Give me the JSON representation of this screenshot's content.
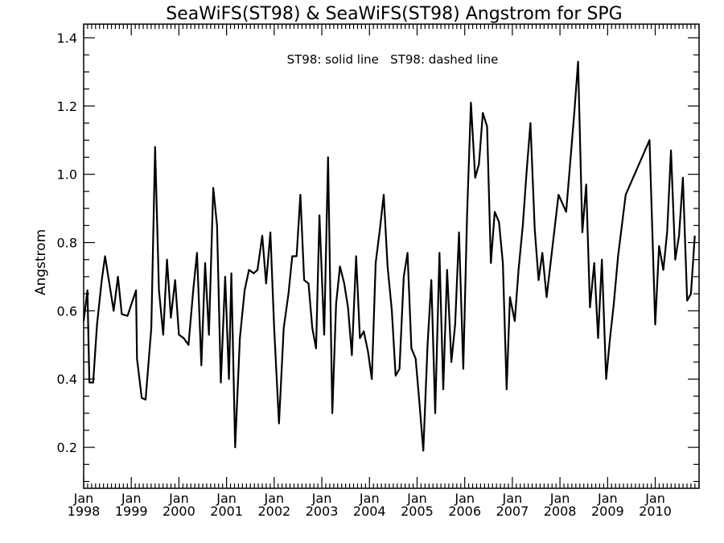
{
  "chart_data": {
    "type": "line",
    "title": "SeaWiFS(ST98) & SeaWiFS(ST98)  Angstrom for SPG",
    "annotation": "ST98: solid line   ST98: dashed line",
    "ylabel": "Angstrom",
    "xlabel": "",
    "xlim": [
      1998.0,
      2010.92
    ],
    "ylim": [
      0.08,
      1.44
    ],
    "yticks": [
      0.2,
      0.4,
      0.6,
      0.8,
      1.0,
      1.2,
      1.4
    ],
    "ytick_labels": [
      "0.2",
      "0.4",
      "0.6",
      "0.8",
      "1.0",
      "1.2",
      "1.4"
    ],
    "xticks": [
      {
        "x": 1998,
        "month": "Jan",
        "year": "1998"
      },
      {
        "x": 1999,
        "month": "Jan",
        "year": "1999"
      },
      {
        "x": 2000,
        "month": "Jan",
        "year": "2000"
      },
      {
        "x": 2001,
        "month": "Jan",
        "year": "2001"
      },
      {
        "x": 2002,
        "month": "Jan",
        "year": "2002"
      },
      {
        "x": 2003,
        "month": "Jan",
        "year": "2003"
      },
      {
        "x": 2004,
        "month": "Jan",
        "year": "2004"
      },
      {
        "x": 2005,
        "month": "Jan",
        "year": "2005"
      },
      {
        "x": 2006,
        "month": "Jan",
        "year": "2006"
      },
      {
        "x": 2007,
        "month": "Jan",
        "year": "2007"
      },
      {
        "x": 2008,
        "month": "Jan",
        "year": "2008"
      },
      {
        "x": 2009,
        "month": "Jan",
        "year": "2009"
      },
      {
        "x": 2010,
        "month": "Jan",
        "year": "2010"
      }
    ],
    "grid": false,
    "series": [
      {
        "line_style": "solid",
        "color": "#000000",
        "points": [
          [
            1998.0,
            0.57
          ],
          [
            1998.08,
            0.66
          ],
          [
            1998.12,
            0.39
          ],
          [
            1998.2,
            0.39
          ],
          [
            1998.28,
            0.56
          ],
          [
            1998.38,
            0.69
          ],
          [
            1998.45,
            0.76
          ],
          [
            1998.55,
            0.67
          ],
          [
            1998.63,
            0.6
          ],
          [
            1998.72,
            0.7
          ],
          [
            1998.8,
            0.59
          ],
          [
            1998.92,
            0.585
          ],
          [
            1999.1,
            0.66
          ],
          [
            1999.12,
            0.46
          ],
          [
            1999.22,
            0.345
          ],
          [
            1999.3,
            0.34
          ],
          [
            1999.42,
            0.55
          ],
          [
            1999.5,
            1.08
          ],
          [
            1999.58,
            0.66
          ],
          [
            1999.67,
            0.53
          ],
          [
            1999.75,
            0.75
          ],
          [
            1999.83,
            0.58
          ],
          [
            1999.92,
            0.69
          ],
          [
            2000.0,
            0.53
          ],
          [
            2000.1,
            0.52
          ],
          [
            2000.2,
            0.5
          ],
          [
            2000.3,
            0.66
          ],
          [
            2000.38,
            0.77
          ],
          [
            2000.47,
            0.44
          ],
          [
            2000.55,
            0.74
          ],
          [
            2000.63,
            0.53
          ],
          [
            2000.72,
            0.96
          ],
          [
            2000.8,
            0.85
          ],
          [
            2000.88,
            0.39
          ],
          [
            2000.97,
            0.7
          ],
          [
            2001.05,
            0.4
          ],
          [
            2001.1,
            0.71
          ],
          [
            2001.18,
            0.2
          ],
          [
            2001.28,
            0.52
          ],
          [
            2001.38,
            0.66
          ],
          [
            2001.47,
            0.72
          ],
          [
            2001.57,
            0.71
          ],
          [
            2001.65,
            0.72
          ],
          [
            2001.75,
            0.82
          ],
          [
            2001.83,
            0.68
          ],
          [
            2001.92,
            0.83
          ],
          [
            2002.0,
            0.55
          ],
          [
            2002.1,
            0.27
          ],
          [
            2002.2,
            0.55
          ],
          [
            2002.3,
            0.65
          ],
          [
            2002.38,
            0.76
          ],
          [
            2002.47,
            0.76
          ],
          [
            2002.55,
            0.94
          ],
          [
            2002.63,
            0.69
          ],
          [
            2002.72,
            0.68
          ],
          [
            2002.8,
            0.55
          ],
          [
            2002.88,
            0.49
          ],
          [
            2002.95,
            0.88
          ],
          [
            2003.05,
            0.53
          ],
          [
            2003.13,
            1.05
          ],
          [
            2003.22,
            0.3
          ],
          [
            2003.3,
            0.62
          ],
          [
            2003.38,
            0.73
          ],
          [
            2003.47,
            0.68
          ],
          [
            2003.55,
            0.61
          ],
          [
            2003.63,
            0.47
          ],
          [
            2003.72,
            0.76
          ],
          [
            2003.8,
            0.52
          ],
          [
            2003.88,
            0.54
          ],
          [
            2003.97,
            0.48
          ],
          [
            2004.05,
            0.4
          ],
          [
            2004.13,
            0.74
          ],
          [
            2004.22,
            0.84
          ],
          [
            2004.3,
            0.94
          ],
          [
            2004.38,
            0.73
          ],
          [
            2004.47,
            0.6
          ],
          [
            2004.55,
            0.41
          ],
          [
            2004.63,
            0.43
          ],
          [
            2004.72,
            0.7
          ],
          [
            2004.8,
            0.77
          ],
          [
            2004.88,
            0.49
          ],
          [
            2004.97,
            0.46
          ],
          [
            2005.05,
            0.33
          ],
          [
            2005.13,
            0.19
          ],
          [
            2005.22,
            0.5
          ],
          [
            2005.3,
            0.69
          ],
          [
            2005.38,
            0.3
          ],
          [
            2005.47,
            0.77
          ],
          [
            2005.55,
            0.37
          ],
          [
            2005.63,
            0.72
          ],
          [
            2005.72,
            0.45
          ],
          [
            2005.8,
            0.56
          ],
          [
            2005.88,
            0.83
          ],
          [
            2005.97,
            0.43
          ],
          [
            2006.05,
            0.88
          ],
          [
            2006.13,
            1.21
          ],
          [
            2006.22,
            0.99
          ],
          [
            2006.3,
            1.03
          ],
          [
            2006.38,
            1.18
          ],
          [
            2006.47,
            1.14
          ],
          [
            2006.55,
            0.74
          ],
          [
            2006.63,
            0.89
          ],
          [
            2006.72,
            0.86
          ],
          [
            2006.8,
            0.74
          ],
          [
            2006.88,
            0.37
          ],
          [
            2006.95,
            0.64
          ],
          [
            2007.05,
            0.57
          ],
          [
            2007.13,
            0.72
          ],
          [
            2007.22,
            0.85
          ],
          [
            2007.3,
            1.01
          ],
          [
            2007.38,
            1.15
          ],
          [
            2007.47,
            0.84
          ],
          [
            2007.55,
            0.69
          ],
          [
            2007.63,
            0.77
          ],
          [
            2007.72,
            0.64
          ],
          [
            2007.97,
            0.94
          ],
          [
            2008.13,
            0.89
          ],
          [
            2008.3,
            1.18
          ],
          [
            2008.38,
            1.33
          ],
          [
            2008.47,
            0.83
          ],
          [
            2008.55,
            0.97
          ],
          [
            2008.63,
            0.61
          ],
          [
            2008.72,
            0.74
          ],
          [
            2008.8,
            0.52
          ],
          [
            2008.88,
            0.75
          ],
          [
            2008.97,
            0.4
          ],
          [
            2009.05,
            0.52
          ],
          [
            2009.13,
            0.62
          ],
          [
            2009.22,
            0.76
          ],
          [
            2009.38,
            0.94
          ],
          [
            2009.88,
            1.1
          ],
          [
            2010.0,
            0.56
          ],
          [
            2010.08,
            0.79
          ],
          [
            2010.17,
            0.72
          ],
          [
            2010.25,
            0.83
          ],
          [
            2010.33,
            1.07
          ],
          [
            2010.42,
            0.75
          ],
          [
            2010.5,
            0.82
          ],
          [
            2010.58,
            0.99
          ],
          [
            2010.67,
            0.63
          ],
          [
            2010.75,
            0.65
          ],
          [
            2010.83,
            0.82
          ]
        ]
      }
    ]
  }
}
